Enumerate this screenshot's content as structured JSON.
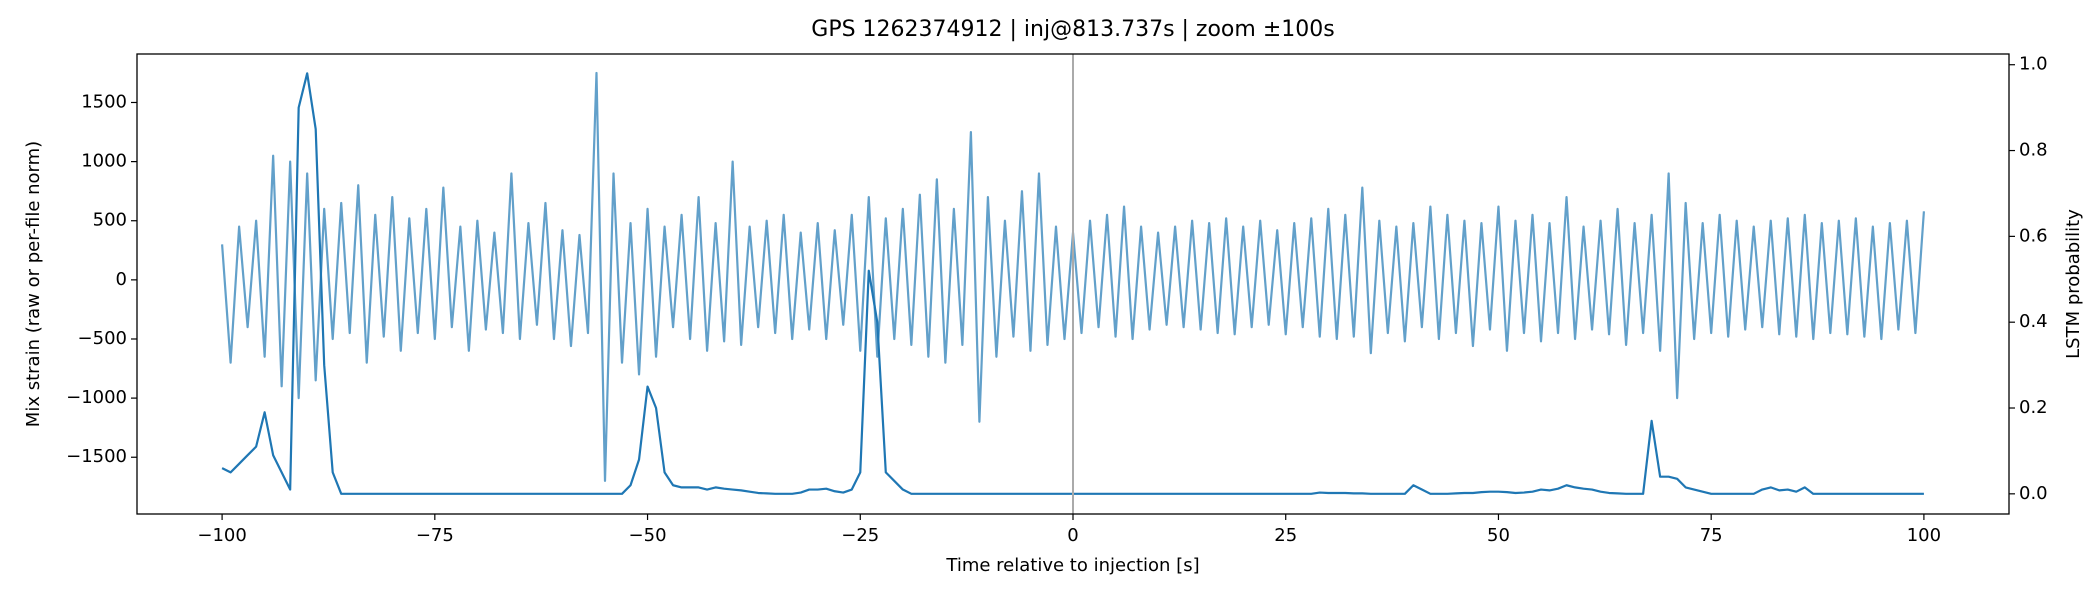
{
  "chart_data": {
    "type": "line",
    "title": "GPS 1262374912 | inj@813.737s | zoom ±100s",
    "xlabel": "Time relative to injection [s]",
    "ylabel": "Mix strain (raw or per-file norm)",
    "y2label": "LSTM probability",
    "x": [
      -100,
      -99,
      -98,
      -97,
      -96,
      -95,
      -94,
      -93,
      -92,
      -91,
      -90,
      -89,
      -88,
      -87,
      -86,
      -85,
      -84,
      -83,
      -82,
      -81,
      -80,
      -79,
      -78,
      -77,
      -76,
      -75,
      -74,
      -73,
      -72,
      -71,
      -70,
      -69,
      -68,
      -67,
      -66,
      -65,
      -64,
      -63,
      -62,
      -61,
      -60,
      -59,
      -58,
      -57,
      -56,
      -55,
      -54,
      -53,
      -52,
      -51,
      -50,
      -49,
      -48,
      -47,
      -46,
      -45,
      -44,
      -43,
      -42,
      -41,
      -40,
      -39,
      -38,
      -37,
      -36,
      -35,
      -34,
      -33,
      -32,
      -31,
      -30,
      -29,
      -28,
      -27,
      -26,
      -25,
      -24,
      -23,
      -22,
      -21,
      -20,
      -19,
      -18,
      -17,
      -16,
      -15,
      -14,
      -13,
      -12,
      -11,
      -10,
      -9,
      -8,
      -7,
      -6,
      -5,
      -4,
      -3,
      -2,
      -1,
      0,
      1,
      2,
      3,
      4,
      5,
      6,
      7,
      8,
      9,
      10,
      11,
      12,
      13,
      14,
      15,
      16,
      17,
      18,
      19,
      20,
      21,
      22,
      23,
      24,
      25,
      26,
      27,
      28,
      29,
      30,
      31,
      32,
      33,
      34,
      35,
      36,
      37,
      38,
      39,
      40,
      41,
      42,
      43,
      44,
      45,
      46,
      47,
      48,
      49,
      50,
      51,
      52,
      53,
      54,
      55,
      56,
      57,
      58,
      59,
      60,
      61,
      62,
      63,
      64,
      65,
      66,
      67,
      68,
      69,
      70,
      71,
      72,
      73,
      74,
      75,
      76,
      77,
      78,
      79,
      80,
      81,
      82,
      83,
      84,
      85,
      86,
      87,
      88,
      89,
      90,
      91,
      92,
      93,
      94,
      95,
      96,
      97,
      98,
      99,
      100
    ],
    "series": [
      {
        "name": "strain",
        "color": "#1f77b4",
        "opacity": 0.7,
        "axis": "y",
        "values": [
          300,
          -700,
          450,
          -400,
          500,
          -650,
          1050,
          -900,
          1000,
          -1000,
          900,
          -850,
          600,
          -500,
          650,
          -450,
          800,
          -700,
          550,
          -480,
          700,
          -600,
          520,
          -450,
          600,
          -500,
          780,
          -400,
          450,
          -600,
          500,
          -420,
          400,
          -450,
          900,
          -500,
          480,
          -380,
          650,
          -500,
          420,
          -560,
          380,
          -450,
          1750,
          -1700,
          900,
          -700,
          480,
          -800,
          600,
          -650,
          450,
          -400,
          550,
          -500,
          700,
          -600,
          480,
          -520,
          1000,
          -550,
          450,
          -400,
          500,
          -450,
          550,
          -500,
          400,
          -420,
          480,
          -500,
          420,
          -380,
          550,
          -600,
          700,
          -650,
          520,
          -500,
          600,
          -550,
          720,
          -650,
          850,
          -700,
          600,
          -550,
          1250,
          -1200,
          700,
          -650,
          500,
          -480,
          750,
          -600,
          900,
          -550,
          450,
          -500,
          400,
          -450,
          500,
          -400,
          550,
          -480,
          620,
          -500,
          450,
          -420,
          400,
          -380,
          450,
          -400,
          500,
          -420,
          480,
          -450,
          520,
          -460,
          450,
          -400,
          500,
          -380,
          420,
          -460,
          480,
          -400,
          520,
          -480,
          600,
          -500,
          550,
          -480,
          780,
          -620,
          500,
          -450,
          450,
          -520,
          480,
          -400,
          620,
          -500,
          550,
          -450,
          500,
          -560,
          480,
          -420,
          620,
          -600,
          500,
          -450,
          550,
          -520,
          480,
          -450,
          700,
          -500,
          450,
          -420,
          500,
          -460,
          600,
          -550,
          480,
          -450,
          550,
          -600,
          900,
          -1000,
          650,
          -500,
          480,
          -450,
          550,
          -480,
          500,
          -420,
          450,
          -400,
          500,
          -460,
          520,
          -480,
          550,
          -500,
          480,
          -450,
          500,
          -460,
          520,
          -480,
          450,
          -500,
          480,
          -420,
          500,
          -450,
          580
        ]
      },
      {
        "name": "LSTM probability",
        "color": "#1f77b4",
        "opacity": 1,
        "axis": "y2",
        "values": [
          0.06,
          0.05,
          0.07,
          0.09,
          0.11,
          0.19,
          0.09,
          0.05,
          0.01,
          0.9,
          0.98,
          0.85,
          0.3,
          0.05,
          0,
          0,
          0,
          0,
          0,
          0,
          0,
          0,
          0,
          0,
          0,
          0,
          0,
          0,
          0,
          0,
          0,
          0,
          0,
          0,
          0,
          0,
          0,
          0,
          0,
          0,
          0,
          0,
          0,
          0,
          0,
          0,
          0,
          0,
          0.02,
          0.08,
          0.25,
          0.2,
          0.05,
          0.02,
          0.015,
          0.015,
          0.015,
          0.01,
          0.015,
          0.012,
          0.01,
          0.008,
          0.005,
          0.002,
          0.001,
          0,
          0,
          0,
          0.003,
          0.01,
          0.01,
          0.012,
          0.006,
          0.003,
          0.01,
          0.05,
          0.52,
          0.4,
          0.05,
          0.03,
          0.01,
          0,
          0,
          0,
          0,
          0,
          0,
          0,
          0,
          0,
          0,
          0,
          0,
          0,
          0,
          0,
          0,
          0,
          0,
          0,
          0,
          0,
          0,
          0,
          0,
          0,
          0,
          0,
          0,
          0,
          0,
          0,
          0,
          0,
          0,
          0,
          0,
          0,
          0,
          0,
          0,
          0,
          0,
          0,
          0,
          0,
          0,
          0,
          0,
          0.003,
          0.002,
          0.002,
          0.002,
          0.001,
          0.001,
          0,
          0,
          0,
          0,
          0,
          0.02,
          0.01,
          0,
          0,
          0,
          0.001,
          0.002,
          0.002,
          0.004,
          0.005,
          0.005,
          0.004,
          0.002,
          0.003,
          0.005,
          0.01,
          0.008,
          0.012,
          0.02,
          0.015,
          0.012,
          0.01,
          0.005,
          0.002,
          0.001,
          0,
          0,
          0,
          0.17,
          0.04,
          0.04,
          0.035,
          0.015,
          0.01,
          0.005,
          0,
          0,
          0,
          0,
          0,
          0,
          0.01,
          0.015,
          0.008,
          0.01,
          0.005,
          0.015,
          0,
          0,
          0,
          0,
          0,
          0,
          0,
          0,
          0,
          0,
          0,
          0,
          0,
          0
        ]
      }
    ],
    "vline": {
      "x": 0,
      "color": "#aaaaaa"
    },
    "xlim": [
      -110,
      110
    ],
    "xticks": [
      {
        "value": -100,
        "label": "−100"
      },
      {
        "value": -75,
        "label": "−75"
      },
      {
        "value": -50,
        "label": "−50"
      },
      {
        "value": -25,
        "label": "−25"
      },
      0,
      25,
      50,
      75,
      100
    ],
    "ylim": [
      -1980,
      1910
    ],
    "yticks": [
      {
        "value": -1500,
        "label": "−1500"
      },
      {
        "value": -1000,
        "label": "−1000"
      },
      {
        "value": -500,
        "label": "−500"
      },
      0,
      500,
      1000,
      1500
    ],
    "y2lim": [
      -0.047,
      1.025
    ],
    "y2ticks": [
      {
        "value": 0,
        "label": "0.0"
      },
      0.2,
      0.4,
      0.6,
      0.8,
      {
        "value": 1,
        "label": "1.0"
      }
    ],
    "grid": false
  }
}
